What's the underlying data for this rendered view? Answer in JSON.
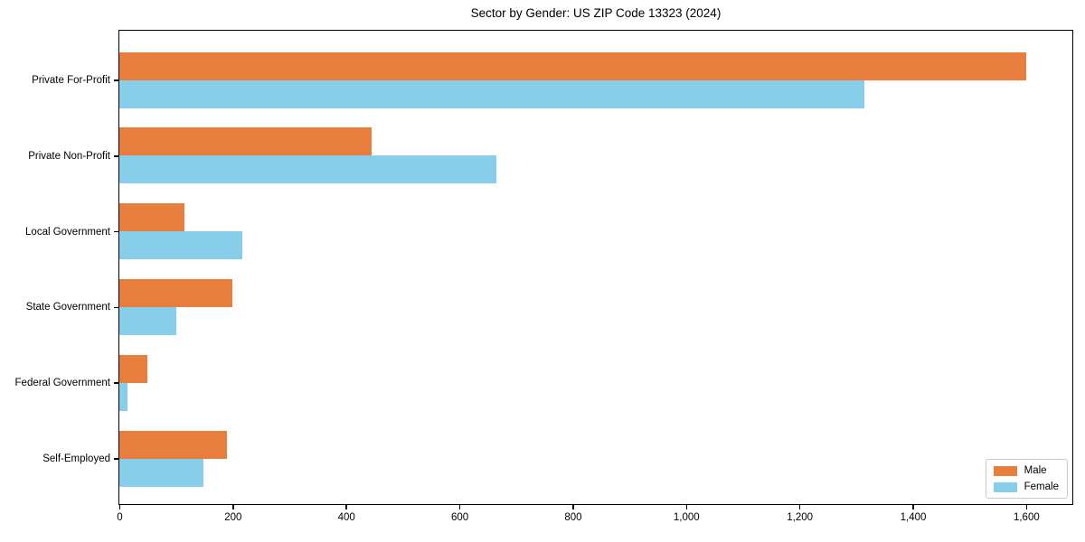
{
  "chart_data": {
    "type": "bar",
    "orientation": "horizontal",
    "title": "Sector by Gender: US ZIP Code 13323 (2024)",
    "categories": [
      "Private For-Profit",
      "Private Non-Profit",
      "Local Government",
      "State Government",
      "Federal Government",
      "Self-Employed"
    ],
    "series": [
      {
        "name": "Male",
        "color": "#e87e3e",
        "values": [
          1600,
          445,
          115,
          200,
          50,
          190
        ]
      },
      {
        "name": "Female",
        "color": "#87ceeb",
        "values": [
          1315,
          665,
          217,
          100,
          15,
          148
        ]
      }
    ],
    "xlabel": "",
    "ylabel": "",
    "xlim": [
      0,
      1680
    ],
    "xticks": [
      0,
      200,
      400,
      600,
      800,
      1000,
      1200,
      1400,
      1600
    ],
    "xtick_labels": [
      "0",
      "200",
      "400",
      "600",
      "800",
      "1,000",
      "1,200",
      "1,400",
      "1,600"
    ],
    "grid": false,
    "legend_position": "lower right",
    "axis_color": "#000000",
    "background_color": "#ffffff"
  }
}
